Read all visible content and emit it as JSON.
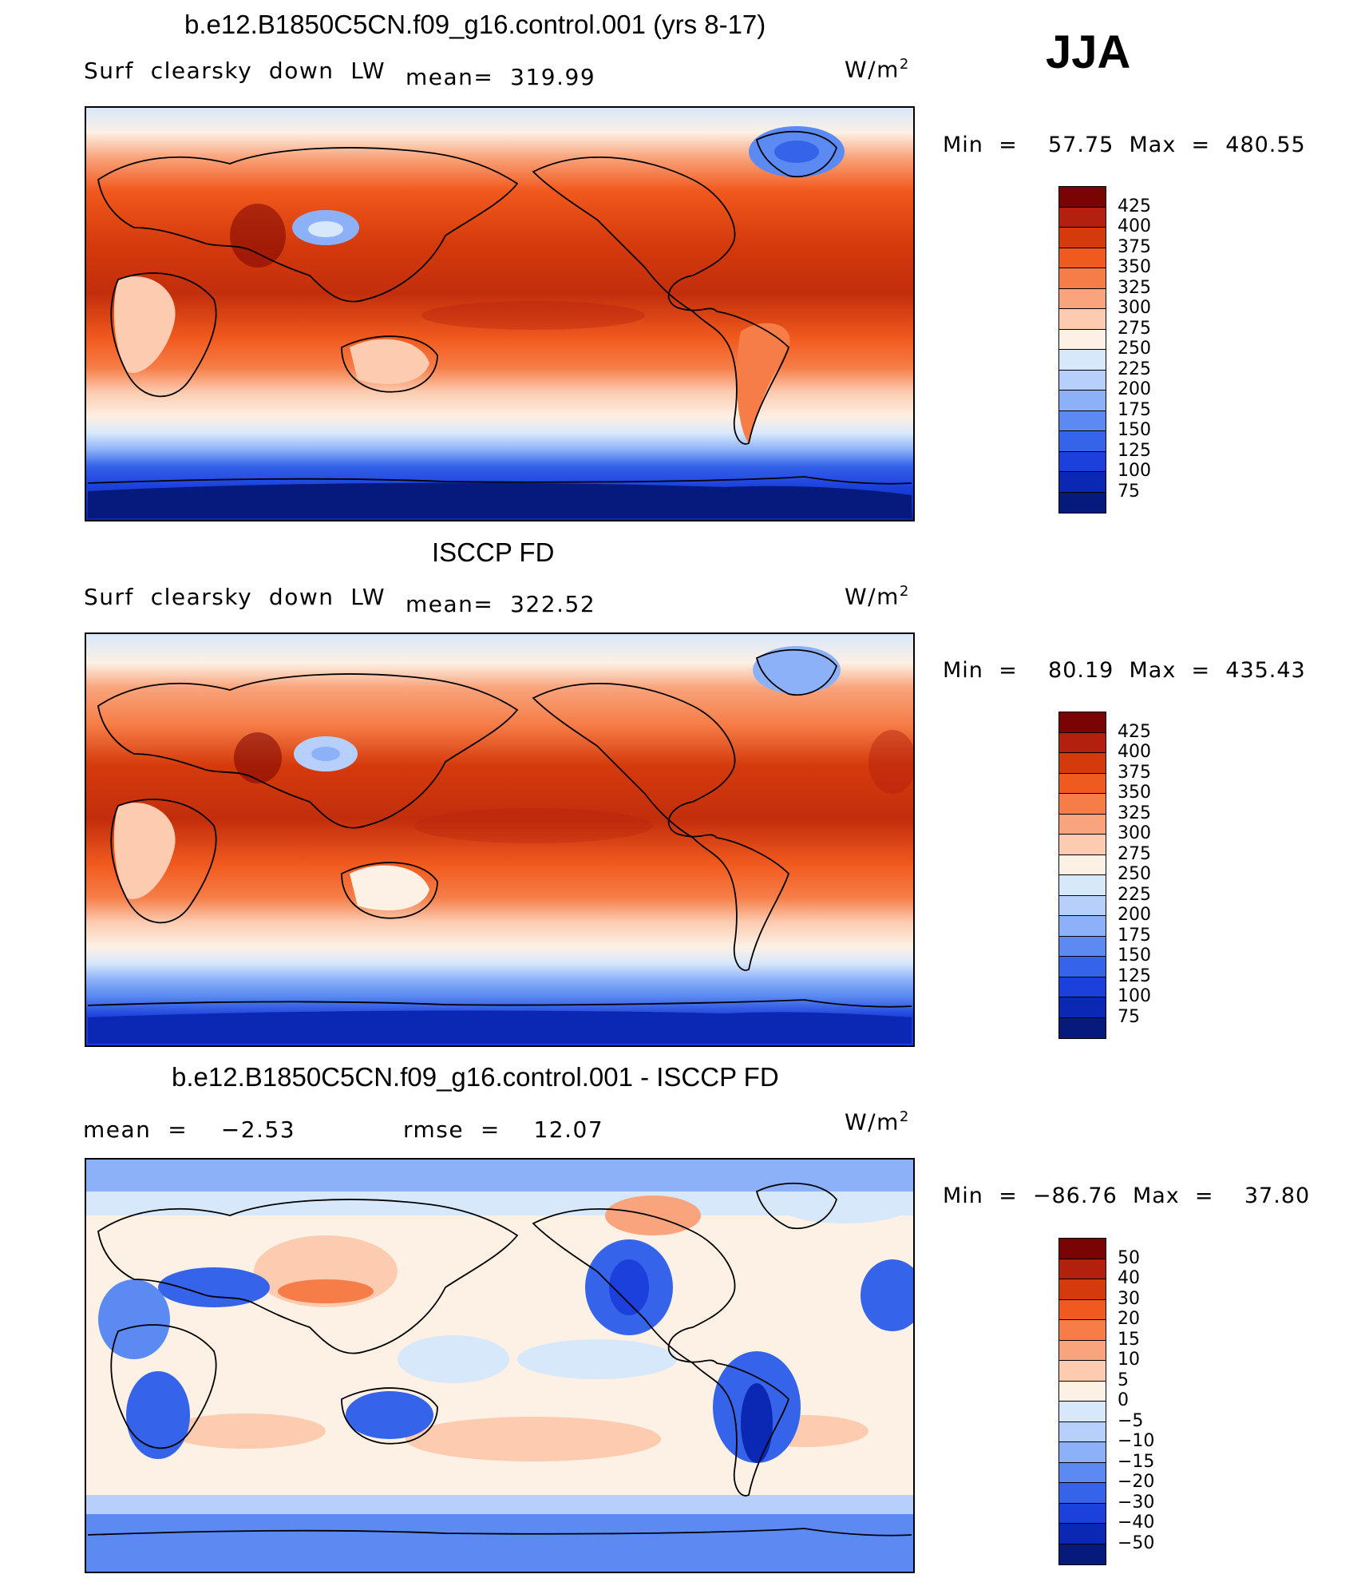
{
  "season": "JJA",
  "units_text": "W/m",
  "units_sup": "2",
  "panels": [
    {
      "title": "b.e12.B1850C5CN.f09_g16.control.001 (yrs 8-17)",
      "left_label": "Surf  clearsky  down  LW",
      "stat_label": "mean=  319.99",
      "minmax": "Min  =    57.75  Max  =  480.55"
    },
    {
      "title": "ISCCP FD",
      "left_label": "Surf  clearsky  down  LW",
      "stat_label": "mean=  322.52",
      "minmax": "Min  =    80.19  Max  =  435.43"
    },
    {
      "title": "b.e12.B1850C5CN.f09_g16.control.001 - ISCCP FD",
      "left_label": "mean  =    −2.53",
      "stat_label": "rmse  =    12.07",
      "minmax": "Min  =  −86.76  Max  =    37.80"
    }
  ],
  "chart_data": [
    {
      "type": "heatmap",
      "title": "b.e12.B1850C5CN.f09_g16.control.001 (yrs 8-17)",
      "variable": "Surf clearsky down LW",
      "units": "W/m2",
      "mean": 319.99,
      "min": 57.75,
      "max": 480.55,
      "colorbar_levels": [
        425,
        400,
        375,
        350,
        325,
        300,
        275,
        250,
        225,
        200,
        175,
        150,
        125,
        100,
        75
      ],
      "colorbar_colors": [
        "#7a0403",
        "#b3200e",
        "#d53a0c",
        "#f15a1e",
        "#f67d47",
        "#f9a47c",
        "#fccbb0",
        "#fdf0e4",
        "#d7e8fb",
        "#b6d0fb",
        "#8cb1f8",
        "#5a8af2",
        "#3563ea",
        "#1b40dc",
        "#0b28b4",
        "#061a7d"
      ]
    },
    {
      "type": "heatmap",
      "title": "ISCCP FD",
      "variable": "Surf clearsky down LW",
      "units": "W/m2",
      "mean": 322.52,
      "min": 80.19,
      "max": 435.43,
      "colorbar_levels": [
        425,
        400,
        375,
        350,
        325,
        300,
        275,
        250,
        225,
        200,
        175,
        150,
        125,
        100,
        75
      ],
      "colorbar_colors": [
        "#7a0403",
        "#b3200e",
        "#d53a0c",
        "#f15a1e",
        "#f67d47",
        "#f9a47c",
        "#fccbb0",
        "#fdf0e4",
        "#d7e8fb",
        "#b6d0fb",
        "#8cb1f8",
        "#5a8af2",
        "#3563ea",
        "#1b40dc",
        "#0b28b4",
        "#061a7d"
      ]
    },
    {
      "type": "heatmap",
      "title": "b.e12.B1850C5CN.f09_g16.control.001 - ISCCP FD",
      "units": "W/m2",
      "mean": -2.53,
      "rmse": 12.07,
      "min": -86.76,
      "max": 37.8,
      "colorbar_levels": [
        "50",
        "40",
        "30",
        "20",
        "15",
        "10",
        "5",
        "0",
        "−5",
        "−10",
        "−15",
        "−20",
        "−30",
        "−40",
        "−50"
      ],
      "colorbar_colors": [
        "#7a0403",
        "#b3200e",
        "#d53a0c",
        "#f15a1e",
        "#f67d47",
        "#f9a47c",
        "#fccbb0",
        "#fdf0e4",
        "#d7e8fb",
        "#b6d0fb",
        "#8cb1f8",
        "#5a8af2",
        "#3563ea",
        "#1b40dc",
        "#0b28b4",
        "#061a7d"
      ]
    }
  ]
}
